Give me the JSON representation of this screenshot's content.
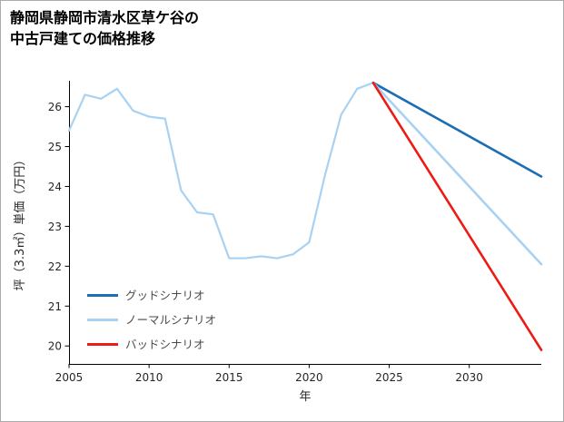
{
  "header": {
    "title_lines": [
      "静岡県静岡市清水区草ケ谷の",
      "中古戸建ての価格推移"
    ]
  },
  "chart_data": {
    "type": "line",
    "title": "静岡県静岡市清水区草ケ谷の中古戸建ての価格推移",
    "xlabel": "年",
    "ylabel": "坪（3.3㎡）単価（万円）",
    "xlim": [
      2005,
      2034.5
    ],
    "ylim": [
      19.55,
      26.65
    ],
    "x_ticks": [
      2005,
      2010,
      2015,
      2020,
      2025,
      2030
    ],
    "y_ticks": [
      20,
      21,
      22,
      23,
      24,
      25,
      26
    ],
    "grid": false,
    "legend_position": "lower-left",
    "axis_color": "#000000",
    "series": [
      {
        "key": "history",
        "color": "#a9d2f2",
        "width": 2.2,
        "x": [
          2005,
          2006,
          2007,
          2008,
          2009,
          2010,
          2011,
          2012,
          2013,
          2014,
          2015,
          2016,
          2017,
          2018,
          2019,
          2020,
          2021,
          2022,
          2023,
          2024
        ],
        "y": [
          25.4,
          26.3,
          26.2,
          26.45,
          25.9,
          25.75,
          25.7,
          23.9,
          23.35,
          23.3,
          22.2,
          22.2,
          22.25,
          22.2,
          22.3,
          22.6,
          24.3,
          25.8,
          26.45,
          26.6
        ]
      },
      {
        "key": "good",
        "label": "グッドシナリオ",
        "color": "#1b6db4",
        "width": 2.6,
        "x": [
          2024,
          2034.5
        ],
        "y": [
          26.6,
          24.25
        ]
      },
      {
        "key": "normal",
        "label": "ノーマルシナリオ",
        "color": "#a9d2f2",
        "width": 2.6,
        "x": [
          2024,
          2034.5
        ],
        "y": [
          26.6,
          22.05
        ]
      },
      {
        "key": "bad",
        "label": "バッドシナリオ",
        "color": "#ed1b13",
        "width": 2.6,
        "x": [
          2024,
          2034.5
        ],
        "y": [
          26.6,
          19.9
        ]
      }
    ],
    "legend": [
      {
        "key": "good",
        "label": "グッドシナリオ",
        "color": "#1b6db4"
      },
      {
        "key": "normal",
        "label": "ノーマルシナリオ",
        "color": "#a9d2f2"
      },
      {
        "key": "bad",
        "label": "バッドシナリオ",
        "color": "#ed1b13"
      }
    ]
  }
}
